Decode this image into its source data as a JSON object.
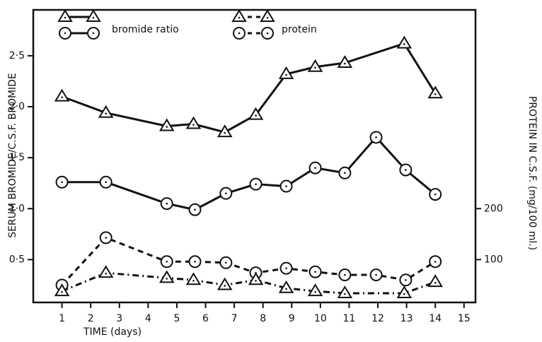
{
  "chart_data": {
    "type": "line",
    "xlabel": "TIME (days)",
    "ylabel": "SERUM BROMIDE/C.S.F. BROMIDE",
    "y2label": "PROTEIN IN C.S.F. (mg/100 ml.)",
    "legend": [
      {
        "label": "bromide ratio"
      },
      {
        "label": "protein"
      }
    ],
    "xlim": [
      0,
      15.4
    ],
    "xticks": [
      1,
      2,
      3,
      4,
      5,
      6,
      7,
      8,
      9,
      10,
      11,
      12,
      13,
      14,
      15
    ],
    "ylim": [
      0.08,
      2.95
    ],
    "yticks": [
      {
        "value": 0.5,
        "label": "0·5"
      },
      {
        "value": 1.0,
        "label": "1·0"
      },
      {
        "value": 1.5,
        "label": "1·5"
      },
      {
        "value": 2.0,
        "label": "2·0"
      },
      {
        "value": 2.5,
        "label": "2·5"
      }
    ],
    "y2lim": [
      16,
      590
    ],
    "y2ticks": [
      100,
      200
    ],
    "series": [
      {
        "marker": "triangle",
        "dash": "solid",
        "color": "#111",
        "x": [
          1,
          2.53,
          4.65,
          5.58,
          6.67,
          7.75,
          8.81,
          9.82,
          10.85,
          12.92,
          14.0
        ],
        "values": [
          2.1,
          1.94,
          1.81,
          1.83,
          1.75,
          1.92,
          2.32,
          2.39,
          2.43,
          2.62,
          2.13
        ]
      },
      {
        "marker": "circle",
        "dash": "solid",
        "color": "#111",
        "x": [
          1,
          2.53,
          4.65,
          5.63,
          6.71,
          7.75,
          8.81,
          9.82,
          10.85,
          11.94,
          12.97,
          14.0
        ],
        "values": [
          1.26,
          1.26,
          1.05,
          0.99,
          1.15,
          1.24,
          1.22,
          1.4,
          1.35,
          1.7,
          1.38,
          1.14
        ]
      },
      {
        "marker": "circle",
        "dash": "dashed",
        "color": "#111",
        "axis": "y2",
        "x": [
          1,
          2.53,
          4.65,
          5.63,
          6.71,
          7.75,
          8.81,
          9.82,
          10.85,
          11.94,
          12.97,
          14.0
        ],
        "values": [
          50,
          143,
          96,
          96,
          94,
          74,
          83,
          76,
          70,
          70,
          60,
          96
        ]
      },
      {
        "marker": "triangle",
        "dash": "dashdot",
        "color": "#111",
        "x": [
          1,
          2.53,
          4.65,
          5.58,
          6.67,
          7.75,
          8.81,
          9.82,
          10.85,
          12.92,
          14.0
        ],
        "values": [
          0.19,
          0.37,
          0.32,
          0.3,
          0.25,
          0.3,
          0.22,
          0.19,
          0.17,
          0.17,
          0.28
        ]
      }
    ]
  }
}
